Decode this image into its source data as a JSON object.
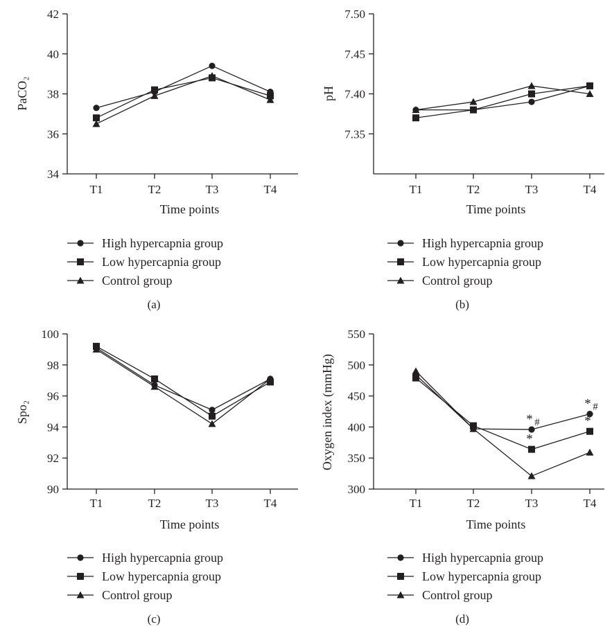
{
  "chart_data": [
    {
      "panel_label": "(a)",
      "type": "line",
      "ylabel": "PaCO₂",
      "xlabel": "Time points",
      "categories": [
        "T1",
        "T2",
        "T3",
        "T4"
      ],
      "ylim": [
        34,
        42
      ],
      "yticks": [
        "34",
        "36",
        "38",
        "40",
        "42"
      ],
      "series": [
        {
          "name": "High hypercapnia group",
          "marker": "circle",
          "values": [
            37.3,
            38.1,
            39.4,
            38.1
          ]
        },
        {
          "name": "Low hypercapnia group",
          "marker": "square",
          "values": [
            36.8,
            38.2,
            38.8,
            37.9
          ]
        },
        {
          "name": "Control group",
          "marker": "triangle",
          "values": [
            36.5,
            37.9,
            38.9,
            37.7
          ]
        }
      ],
      "annotations": [],
      "legend_placement": "below"
    },
    {
      "panel_label": "(b)",
      "type": "line",
      "ylabel": "pH",
      "xlabel": "Time points",
      "categories": [
        "T1",
        "T2",
        "T3",
        "T4"
      ],
      "ylim": [
        7.3,
        7.5
      ],
      "yticks": [
        "7.35",
        "7.40",
        "7.45",
        "7.50"
      ],
      "series": [
        {
          "name": "High hypercapnia group",
          "marker": "circle",
          "values": [
            7.38,
            7.38,
            7.39,
            7.41
          ]
        },
        {
          "name": "Low hypercapnia group",
          "marker": "square",
          "values": [
            7.37,
            7.38,
            7.4,
            7.41
          ]
        },
        {
          "name": "Control group",
          "marker": "triangle",
          "values": [
            7.38,
            7.39,
            7.41,
            7.4
          ]
        }
      ],
      "annotations": [],
      "legend_placement": "below"
    },
    {
      "panel_label": "(c)",
      "type": "line",
      "ylabel": "Spo₂",
      "xlabel": "Time points",
      "categories": [
        "T1",
        "T2",
        "T3",
        "T4"
      ],
      "ylim": [
        90,
        100
      ],
      "yticks": [
        "90",
        "92",
        "94",
        "96",
        "98",
        "100"
      ],
      "series": [
        {
          "name": "High hypercapnia group",
          "marker": "circle",
          "values": [
            99.1,
            96.7,
            95.1,
            97.1
          ]
        },
        {
          "name": "Low hypercapnia group",
          "marker": "square",
          "values": [
            99.2,
            97.1,
            94.7,
            96.9
          ]
        },
        {
          "name": "Control group",
          "marker": "triangle",
          "values": [
            99.0,
            96.6,
            94.2,
            97.1
          ]
        }
      ],
      "annotations": [],
      "legend_placement": "below"
    },
    {
      "panel_label": "(d)",
      "type": "line",
      "ylabel": "Oxygen index (mmHg)",
      "xlabel": "Time points",
      "categories": [
        "T1",
        "T2",
        "T3",
        "T4"
      ],
      "ylim": [
        300,
        550
      ],
      "yticks": [
        "300",
        "350",
        "400",
        "450",
        "500",
        "550"
      ],
      "series": [
        {
          "name": "High hypercapnia group",
          "marker": "circle",
          "values": [
            484,
            397,
            396,
            421
          ]
        },
        {
          "name": "Low hypercapnia group",
          "marker": "square",
          "values": [
            479,
            402,
            364,
            393
          ]
        },
        {
          "name": "Control group",
          "marker": "triangle",
          "values": [
            490,
            397,
            321,
            359
          ]
        }
      ],
      "annotations": [
        {
          "category": "T3",
          "series": 0,
          "text": "*",
          "sub": "#"
        },
        {
          "category": "T3",
          "series": 1,
          "text": "*",
          "sub": ""
        },
        {
          "category": "T4",
          "series": 0,
          "text": "*",
          "sub": "#"
        },
        {
          "category": "T4",
          "series": 1,
          "text": "*",
          "sub": ""
        }
      ],
      "legend_placement": "below"
    }
  ]
}
